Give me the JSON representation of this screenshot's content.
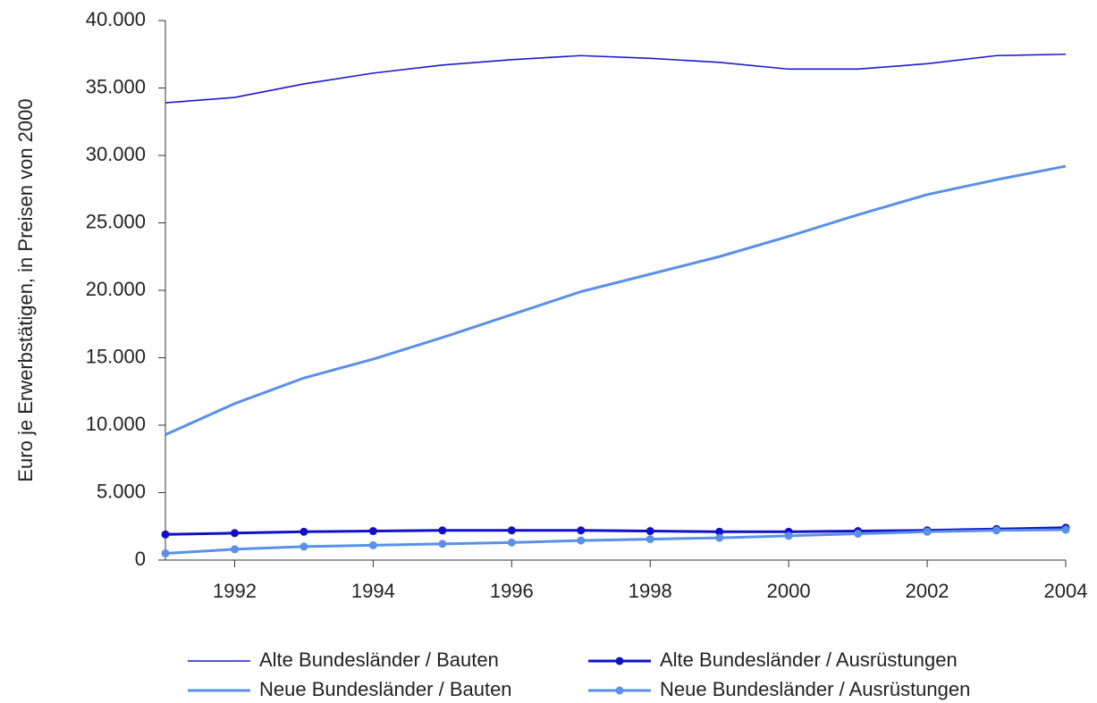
{
  "chart_data": {
    "type": "line",
    "y_label": "Euro je Erwerbstätigen, in Preisen von 2000",
    "x": [
      1991,
      1992,
      1993,
      1994,
      1995,
      1996,
      1997,
      1998,
      1999,
      2000,
      2001,
      2002,
      2003,
      2004
    ],
    "xlim": [
      1991,
      2004
    ],
    "xticks": [
      1992,
      1994,
      1996,
      1998,
      2000,
      2002,
      2004
    ],
    "ylim": [
      0,
      40000
    ],
    "yticks": [
      0,
      {
        "value": 5000,
        "label": "5.000"
      },
      {
        "value": 10000,
        "label": "10.000"
      },
      {
        "value": 15000,
        "label": "15.000"
      },
      {
        "value": 20000,
        "label": "20.000"
      },
      {
        "value": 25000,
        "label": "25.000"
      },
      {
        "value": 30000,
        "label": "30.000"
      },
      {
        "value": 35000,
        "label": "35.000"
      },
      {
        "value": 40000,
        "label": "40.000"
      }
    ],
    "grid": false,
    "legend": "bottom",
    "series": [
      {
        "name": "Alte Bundesländer / Bauten",
        "color": "#1a1ad0",
        "line_width": 1.6,
        "marker": false,
        "values": [
          33900,
          34300,
          35300,
          36100,
          36700,
          37100,
          37400,
          37200,
          36900,
          36400,
          36400,
          36800,
          37400,
          37500
        ]
      },
      {
        "name": "Alte Bundesländer / Ausrüstungen",
        "color": "#1010c8",
        "line_width": 3,
        "marker": true,
        "values": [
          1900,
          2000,
          2100,
          2150,
          2200,
          2200,
          2200,
          2150,
          2100,
          2100,
          2150,
          2200,
          2300,
          2400
        ]
      },
      {
        "name": "Neue Bundesländer / Bauten",
        "color": "#5a90e8",
        "line_width": 3,
        "marker": false,
        "values": [
          9300,
          11600,
          13500,
          14900,
          16500,
          18200,
          19900,
          21200,
          22500,
          24000,
          25600,
          27100,
          28200,
          29200
        ]
      },
      {
        "name": "Neue Bundesländer / Ausrüstungen",
        "color": "#5a90e8",
        "line_width": 3,
        "marker": true,
        "values": [
          500,
          800,
          1000,
          1100,
          1200,
          1300,
          1450,
          1550,
          1650,
          1800,
          1950,
          2100,
          2200,
          2250
        ]
      }
    ]
  }
}
